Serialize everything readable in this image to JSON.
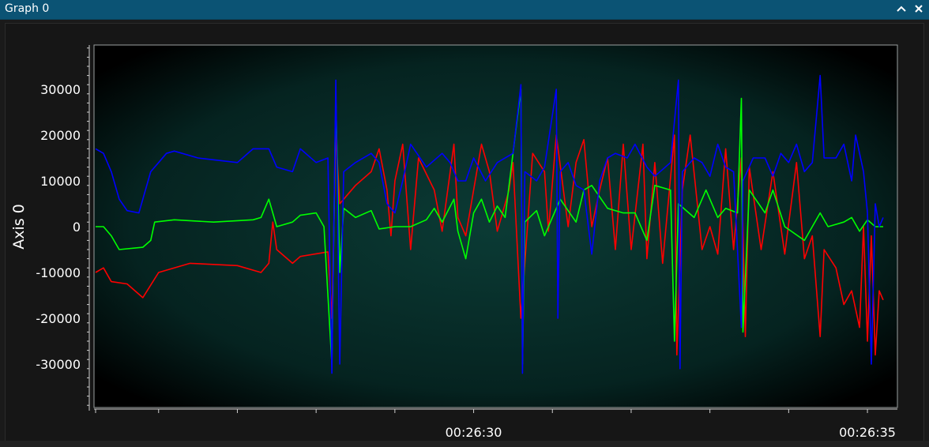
{
  "window": {
    "title": "Graph 0"
  },
  "controls": {
    "collapse_icon": "chevron-up-icon",
    "close_icon": "close-icon"
  },
  "colors": {
    "titlebar": "#0b5374",
    "plot_bg_edge": "#000000",
    "plot_bg_center": "#0b3b35",
    "series_red": "#ff0000",
    "series_green": "#00ff00",
    "series_blue": "#0000ff"
  },
  "chart_data": {
    "type": "line",
    "title": "",
    "xlabel": "",
    "ylabel": "Axis 0",
    "ylim": [
      -39000,
      39000
    ],
    "yticks": [
      30000,
      20000,
      10000,
      0,
      -10000,
      -20000,
      -30000
    ],
    "ytick_labels": [
      "30000",
      "20000",
      "10000",
      "0",
      "-10000",
      "-20000",
      "-30000"
    ],
    "xlim": [
      0,
      10
    ],
    "xticks_labeled": [
      {
        "x": 4.8,
        "label": "00:26:30"
      },
      {
        "x": 9.8,
        "label": "00:26:35"
      }
    ],
    "xticks_minor": [
      0,
      0.8,
      1.8,
      2.8,
      3.8,
      4.8,
      5.8,
      6.8,
      7.8,
      8.8,
      9.8
    ],
    "legend": "none",
    "grid": false,
    "series": [
      {
        "color": "#ff0000",
        "points": [
          [
            0,
            -10000
          ],
          [
            0.1,
            -9000
          ],
          [
            0.2,
            -12000
          ],
          [
            0.4,
            -12500
          ],
          [
            0.6,
            -15500
          ],
          [
            0.8,
            -10000
          ],
          [
            1.2,
            -8000
          ],
          [
            1.8,
            -8500
          ],
          [
            2.1,
            -10000
          ],
          [
            2.2,
            -8000
          ],
          [
            2.25,
            1000
          ],
          [
            2.3,
            -5000
          ],
          [
            2.5,
            -8000
          ],
          [
            2.6,
            -6500
          ],
          [
            2.95,
            -5500
          ],
          [
            3.0,
            -20000
          ],
          [
            3.05,
            20000
          ],
          [
            3.1,
            5000
          ],
          [
            3.3,
            9000
          ],
          [
            3.5,
            12000
          ],
          [
            3.6,
            17000
          ],
          [
            3.7,
            8000
          ],
          [
            3.75,
            -2000
          ],
          [
            3.8,
            10000
          ],
          [
            3.9,
            18000
          ],
          [
            4.0,
            -5000
          ],
          [
            4.1,
            15000
          ],
          [
            4.3,
            8000
          ],
          [
            4.4,
            -1000
          ],
          [
            4.55,
            18000
          ],
          [
            4.6,
            2000
          ],
          [
            4.7,
            -2000
          ],
          [
            4.9,
            18000
          ],
          [
            5.0,
            12000
          ],
          [
            5.1,
            -1000
          ],
          [
            5.25,
            8000
          ],
          [
            5.3,
            14000
          ],
          [
            5.4,
            -20000
          ],
          [
            5.55,
            16000
          ],
          [
            5.7,
            12000
          ],
          [
            5.75,
            -1000
          ],
          [
            5.85,
            20000
          ],
          [
            6.0,
            0
          ],
          [
            6.1,
            14000
          ],
          [
            6.2,
            19000
          ],
          [
            6.3,
            0
          ],
          [
            6.4,
            8000
          ],
          [
            6.5,
            15000
          ],
          [
            6.6,
            -5000
          ],
          [
            6.7,
            18000
          ],
          [
            6.8,
            -5000
          ],
          [
            6.95,
            18000
          ],
          [
            7.0,
            -7000
          ],
          [
            7.1,
            14000
          ],
          [
            7.2,
            -8000
          ],
          [
            7.35,
            20000
          ],
          [
            7.38,
            -28000
          ],
          [
            7.45,
            8000
          ],
          [
            7.55,
            20000
          ],
          [
            7.7,
            -5000
          ],
          [
            7.8,
            0
          ],
          [
            7.9,
            -6000
          ],
          [
            8.0,
            17000
          ],
          [
            8.1,
            -5000
          ],
          [
            8.2,
            15000
          ],
          [
            8.25,
            -24000
          ],
          [
            8.3,
            13000
          ],
          [
            8.45,
            -5000
          ],
          [
            8.6,
            12000
          ],
          [
            8.75,
            -6000
          ],
          [
            8.9,
            14000
          ],
          [
            9.0,
            -7000
          ],
          [
            9.1,
            -2000
          ],
          [
            9.2,
            -24000
          ],
          [
            9.25,
            -5000
          ],
          [
            9.4,
            -9000
          ],
          [
            9.5,
            -17000
          ],
          [
            9.6,
            -14000
          ],
          [
            9.7,
            -22000
          ],
          [
            9.75,
            0
          ],
          [
            9.8,
            -25000
          ],
          [
            9.85,
            -2000
          ],
          [
            9.9,
            -28000
          ],
          [
            9.95,
            -14000
          ],
          [
            10.0,
            -16000
          ]
        ]
      },
      {
        "color": "#00ff00",
        "points": [
          [
            0,
            0
          ],
          [
            0.1,
            0
          ],
          [
            0.2,
            -2000
          ],
          [
            0.3,
            -5000
          ],
          [
            0.6,
            -4500
          ],
          [
            0.7,
            -3000
          ],
          [
            0.75,
            1000
          ],
          [
            1.0,
            1500
          ],
          [
            1.5,
            1000
          ],
          [
            2.0,
            1500
          ],
          [
            2.1,
            2000
          ],
          [
            2.2,
            6000
          ],
          [
            2.3,
            0
          ],
          [
            2.5,
            1000
          ],
          [
            2.6,
            2500
          ],
          [
            2.8,
            3000
          ],
          [
            2.9,
            0
          ],
          [
            3.0,
            -30000
          ],
          [
            3.05,
            28000
          ],
          [
            3.1,
            -10000
          ],
          [
            3.15,
            4000
          ],
          [
            3.3,
            2000
          ],
          [
            3.5,
            3500
          ],
          [
            3.6,
            -500
          ],
          [
            3.8,
            0
          ],
          [
            4.0,
            0
          ],
          [
            4.2,
            1500
          ],
          [
            4.3,
            4000
          ],
          [
            4.4,
            1000
          ],
          [
            4.55,
            6000
          ],
          [
            4.6,
            -1000
          ],
          [
            4.7,
            -7000
          ],
          [
            4.8,
            3000
          ],
          [
            4.9,
            6000
          ],
          [
            5.0,
            1000
          ],
          [
            5.1,
            4500
          ],
          [
            5.2,
            2000
          ],
          [
            5.4,
            30000
          ],
          [
            5.42,
            -30000
          ],
          [
            5.45,
            1000
          ],
          [
            5.6,
            3500
          ],
          [
            5.7,
            -2000
          ],
          [
            5.9,
            6000
          ],
          [
            6.1,
            1000
          ],
          [
            6.2,
            8000
          ],
          [
            6.3,
            9000
          ],
          [
            6.5,
            4000
          ],
          [
            6.7,
            3000
          ],
          [
            6.85,
            3000
          ],
          [
            7.0,
            -3000
          ],
          [
            7.1,
            9000
          ],
          [
            7.3,
            8000
          ],
          [
            7.35,
            -25000
          ],
          [
            7.4,
            5000
          ],
          [
            7.6,
            2000
          ],
          [
            7.75,
            8000
          ],
          [
            7.9,
            2000
          ],
          [
            8.0,
            4000
          ],
          [
            8.15,
            3000
          ],
          [
            8.2,
            28000
          ],
          [
            8.22,
            -23000
          ],
          [
            8.3,
            8000
          ],
          [
            8.5,
            3000
          ],
          [
            8.6,
            8000
          ],
          [
            8.75,
            0
          ],
          [
            9.0,
            -3000
          ],
          [
            9.2,
            3000
          ],
          [
            9.3,
            0
          ],
          [
            9.5,
            1000
          ],
          [
            9.6,
            2000
          ],
          [
            9.7,
            -1000
          ],
          [
            9.8,
            1500
          ],
          [
            9.9,
            0
          ],
          [
            10.0,
            0
          ]
        ]
      },
      {
        "color": "#0000ff",
        "points": [
          [
            0,
            17000
          ],
          [
            0.1,
            16000
          ],
          [
            0.2,
            12000
          ],
          [
            0.3,
            6000
          ],
          [
            0.4,
            3500
          ],
          [
            0.55,
            3000
          ],
          [
            0.7,
            12000
          ],
          [
            0.8,
            14000
          ],
          [
            0.9,
            16000
          ],
          [
            1.0,
            16500
          ],
          [
            1.3,
            15000
          ],
          [
            1.8,
            14000
          ],
          [
            2.0,
            17000
          ],
          [
            2.2,
            17000
          ],
          [
            2.3,
            13000
          ],
          [
            2.5,
            12000
          ],
          [
            2.6,
            17000
          ],
          [
            2.8,
            14000
          ],
          [
            2.95,
            15000
          ],
          [
            3.0,
            -32000
          ],
          [
            3.05,
            32000
          ],
          [
            3.1,
            -30000
          ],
          [
            3.15,
            12000
          ],
          [
            3.3,
            14000
          ],
          [
            3.5,
            16000
          ],
          [
            3.6,
            14000
          ],
          [
            3.7,
            5000
          ],
          [
            3.8,
            3000
          ],
          [
            3.9,
            10000
          ],
          [
            4.0,
            18000
          ],
          [
            4.2,
            13000
          ],
          [
            4.4,
            16000
          ],
          [
            4.5,
            14000
          ],
          [
            4.6,
            10000
          ],
          [
            4.7,
            10000
          ],
          [
            4.8,
            15000
          ],
          [
            4.95,
            10000
          ],
          [
            5.1,
            14000
          ],
          [
            5.3,
            16000
          ],
          [
            5.4,
            31000
          ],
          [
            5.42,
            -32000
          ],
          [
            5.45,
            12000
          ],
          [
            5.6,
            10000
          ],
          [
            5.7,
            13000
          ],
          [
            5.85,
            30000
          ],
          [
            5.87,
            -20000
          ],
          [
            5.9,
            12000
          ],
          [
            6.0,
            14000
          ],
          [
            6.1,
            9000
          ],
          [
            6.2,
            8000
          ],
          [
            6.3,
            -6000
          ],
          [
            6.4,
            10000
          ],
          [
            6.5,
            15000
          ],
          [
            6.6,
            16000
          ],
          [
            6.75,
            15000
          ],
          [
            6.85,
            18000
          ],
          [
            7.0,
            13000
          ],
          [
            7.1,
            11000
          ],
          [
            7.3,
            14000
          ],
          [
            7.4,
            32000
          ],
          [
            7.42,
            -31000
          ],
          [
            7.45,
            12000
          ],
          [
            7.6,
            15000
          ],
          [
            7.7,
            14000
          ],
          [
            7.8,
            11000
          ],
          [
            7.9,
            18000
          ],
          [
            8.0,
            13000
          ],
          [
            8.1,
            12000
          ],
          [
            8.2,
            -22000
          ],
          [
            8.22,
            10000
          ],
          [
            8.35,
            15000
          ],
          [
            8.5,
            15000
          ],
          [
            8.6,
            11000
          ],
          [
            8.7,
            16000
          ],
          [
            8.8,
            14000
          ],
          [
            8.9,
            18000
          ],
          [
            9.0,
            12000
          ],
          [
            9.1,
            14000
          ],
          [
            9.2,
            33000
          ],
          [
            9.25,
            15000
          ],
          [
            9.4,
            15000
          ],
          [
            9.5,
            18000
          ],
          [
            9.6,
            10000
          ],
          [
            9.65,
            20000
          ],
          [
            9.75,
            12000
          ],
          [
            9.8,
            3000
          ],
          [
            9.85,
            -30000
          ],
          [
            9.9,
            5000
          ],
          [
            9.95,
            0
          ],
          [
            10.0,
            2000
          ]
        ]
      }
    ]
  }
}
